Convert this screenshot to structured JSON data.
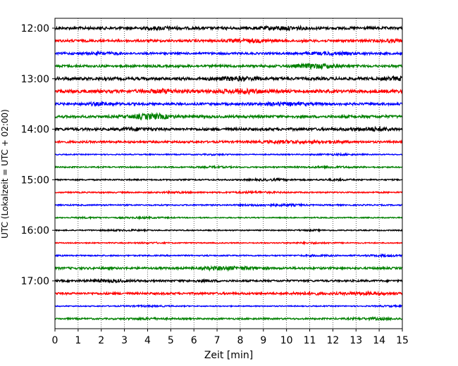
{
  "chart_data": {
    "type": "line",
    "title": "",
    "xlabel": "Zeit  [min]",
    "ylabel": "UTC (Lokalzeit = UTC + 02:00)",
    "xlim": [
      0,
      15
    ],
    "x_ticks": [
      0,
      1,
      2,
      3,
      4,
      5,
      6,
      7,
      8,
      9,
      10,
      11,
      12,
      13,
      14,
      15
    ],
    "x_tick_labels": [
      "0",
      "1",
      "2",
      "3",
      "4",
      "5",
      "6",
      "7",
      "8",
      "9",
      "10",
      "11",
      "12",
      "13",
      "14",
      "15"
    ],
    "y_tick_labels": [
      "12:00",
      "13:00",
      "14:00",
      "15:00",
      "16:00",
      "17:00"
    ],
    "y_tick_rows": [
      0,
      4,
      8,
      12,
      16,
      20
    ],
    "row_interval_minutes": 15,
    "grid": {
      "vertical": true,
      "style": "dotted"
    },
    "legend": "none",
    "trace_colors": [
      "#000000",
      "#ff0000",
      "#0000ff",
      "#008000"
    ],
    "traces": [
      {
        "start": "12:00",
        "color": "#000000",
        "amplitude": 0.5
      },
      {
        "start": "12:15",
        "color": "#ff0000",
        "amplitude": 0.45
      },
      {
        "start": "12:30",
        "color": "#0000ff",
        "amplitude": 0.4
      },
      {
        "start": "12:45",
        "color": "#008000",
        "amplitude": 0.45
      },
      {
        "start": "13:00",
        "color": "#000000",
        "amplitude": 0.55
      },
      {
        "start": "13:15",
        "color": "#ff0000",
        "amplitude": 0.6
      },
      {
        "start": "13:30",
        "color": "#0000ff",
        "amplitude": 0.45
      },
      {
        "start": "13:45",
        "color": "#008000",
        "amplitude": 0.5
      },
      {
        "start": "14:00",
        "color": "#000000",
        "amplitude": 0.5
      },
      {
        "start": "14:15",
        "color": "#ff0000",
        "amplitude": 0.4
      },
      {
        "start": "14:30",
        "color": "#0000ff",
        "amplitude": 0.2
      },
      {
        "start": "14:45",
        "color": "#008000",
        "amplitude": 0.25
      },
      {
        "start": "15:00",
        "color": "#000000",
        "amplitude": 0.25
      },
      {
        "start": "15:15",
        "color": "#ff0000",
        "amplitude": 0.25
      },
      {
        "start": "15:30",
        "color": "#0000ff",
        "amplitude": 0.25
      },
      {
        "start": "15:45",
        "color": "#008000",
        "amplitude": 0.2
      },
      {
        "start": "16:00",
        "color": "#000000",
        "amplitude": 0.2
      },
      {
        "start": "16:15",
        "color": "#ff0000",
        "amplitude": 0.2
      },
      {
        "start": "16:30",
        "color": "#0000ff",
        "amplitude": 0.25
      },
      {
        "start": "16:45",
        "color": "#008000",
        "amplitude": 0.4
      },
      {
        "start": "17:00",
        "color": "#000000",
        "amplitude": 0.35
      },
      {
        "start": "17:15",
        "color": "#ff0000",
        "amplitude": 0.4
      },
      {
        "start": "17:30",
        "color": "#0000ff",
        "amplitude": 0.2
      },
      {
        "start": "17:45",
        "color": "#008000",
        "amplitude": 0.3
      }
    ]
  }
}
